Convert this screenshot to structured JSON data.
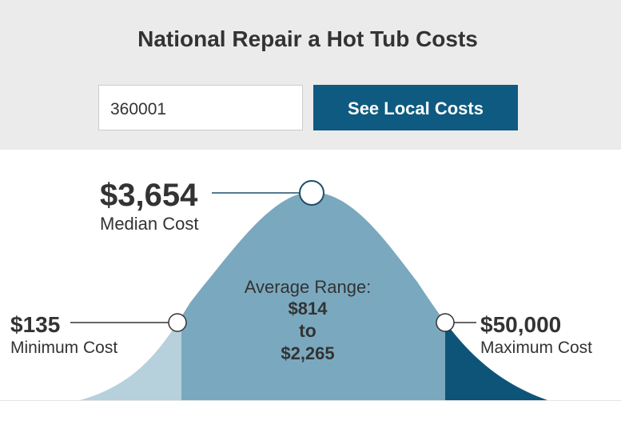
{
  "header": {
    "title": "National Repair a Hot Tub Costs"
  },
  "search": {
    "zip_value": "360001",
    "button": "See Local Costs"
  },
  "median": {
    "value": "$3,654",
    "label": "Median Cost"
  },
  "minimum": {
    "value": "$135",
    "label": "Minimum Cost"
  },
  "maximum": {
    "value": "$50,000",
    "label": "Maximum Cost"
  },
  "average_range": {
    "label": "Average Range:",
    "low": "$814",
    "joiner": "to",
    "high": "$2,265"
  }
}
